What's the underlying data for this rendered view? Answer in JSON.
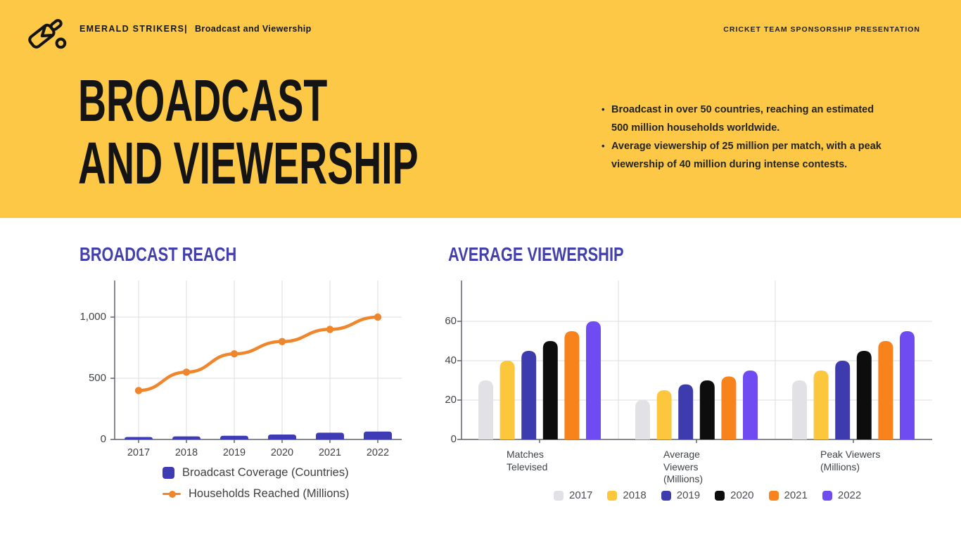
{
  "theme": {
    "yellow": "#FCC845",
    "ink": "#141414",
    "heading_purple": "#4340AE",
    "grid": "#DCDCE0",
    "axis": "#5F6368",
    "tick_text": "#3F4347",
    "legend_text": "#3F3F3F"
  },
  "header": {
    "brand": "EMERALD STRIKERS",
    "separator": "|",
    "page": "Broadcast and Viewership",
    "right_label": "CRICKET TEAM SPONSORSHIP PRESENTATION",
    "logo_icon": "cricket-bat-and-ball-icon"
  },
  "title": {
    "line1": "BROADCAST",
    "line2": "AND VIEWERSHIP"
  },
  "bullets": [
    "Broadcast in over 50 countries, reaching an estimated 500 million households worldwide.",
    "Average viewership of 25 million per match, with a peak viewership of 40 million during intense contests."
  ],
  "chart_data": [
    {
      "type": "combo",
      "title": "BROADCAST REACH",
      "categories": [
        "2017",
        "2018",
        "2019",
        "2020",
        "2021",
        "2022"
      ],
      "series": [
        {
          "name": "Broadcast Coverage (Countries)",
          "type": "bar",
          "color": "#3E3CB4",
          "values": [
            20,
            25,
            30,
            40,
            55,
            65
          ]
        },
        {
          "name": "Households Reached (Millions)",
          "type": "line",
          "color": "#F0862B",
          "values": [
            400,
            550,
            700,
            800,
            900,
            1000
          ]
        }
      ],
      "xlabel": "",
      "ylabel": "",
      "ylim": [
        0,
        1150
      ],
      "yticks": [
        {
          "v": 0,
          "label": "0"
        },
        {
          "v": 500,
          "label": "500"
        },
        {
          "v": 1000,
          "label": "1,000"
        }
      ],
      "grid": true,
      "legend_position": "bottom-left"
    },
    {
      "type": "bar",
      "title": "AVERAGE VIEWERSHIP",
      "categories": [
        "Matches\nTelevised",
        "Average\nViewers\n(Millions)",
        "Peak Viewers\n(Millions)"
      ],
      "series": [
        {
          "name": "2017",
          "color": "#E1E1E6",
          "values": [
            30,
            20,
            30
          ]
        },
        {
          "name": "2018",
          "color": "#FCC63D",
          "values": [
            40,
            25,
            35
          ]
        },
        {
          "name": "2019",
          "color": "#3D3BAE",
          "values": [
            45,
            28,
            40
          ]
        },
        {
          "name": "2020",
          "color": "#0D0D0D",
          "values": [
            50,
            30,
            45
          ]
        },
        {
          "name": "2021",
          "color": "#F8821C",
          "values": [
            55,
            32,
            50
          ]
        },
        {
          "name": "2022",
          "color": "#6F4BF2",
          "values": [
            60,
            35,
            55
          ]
        }
      ],
      "xlabel": "",
      "ylabel": "",
      "ylim": [
        0,
        80
      ],
      "yticks": [
        {
          "v": 0,
          "label": "0"
        },
        {
          "v": 20,
          "label": "20"
        },
        {
          "v": 40,
          "label": "40"
        },
        {
          "v": 60,
          "label": "60"
        }
      ],
      "grid": true,
      "legend_position": "bottom"
    }
  ]
}
